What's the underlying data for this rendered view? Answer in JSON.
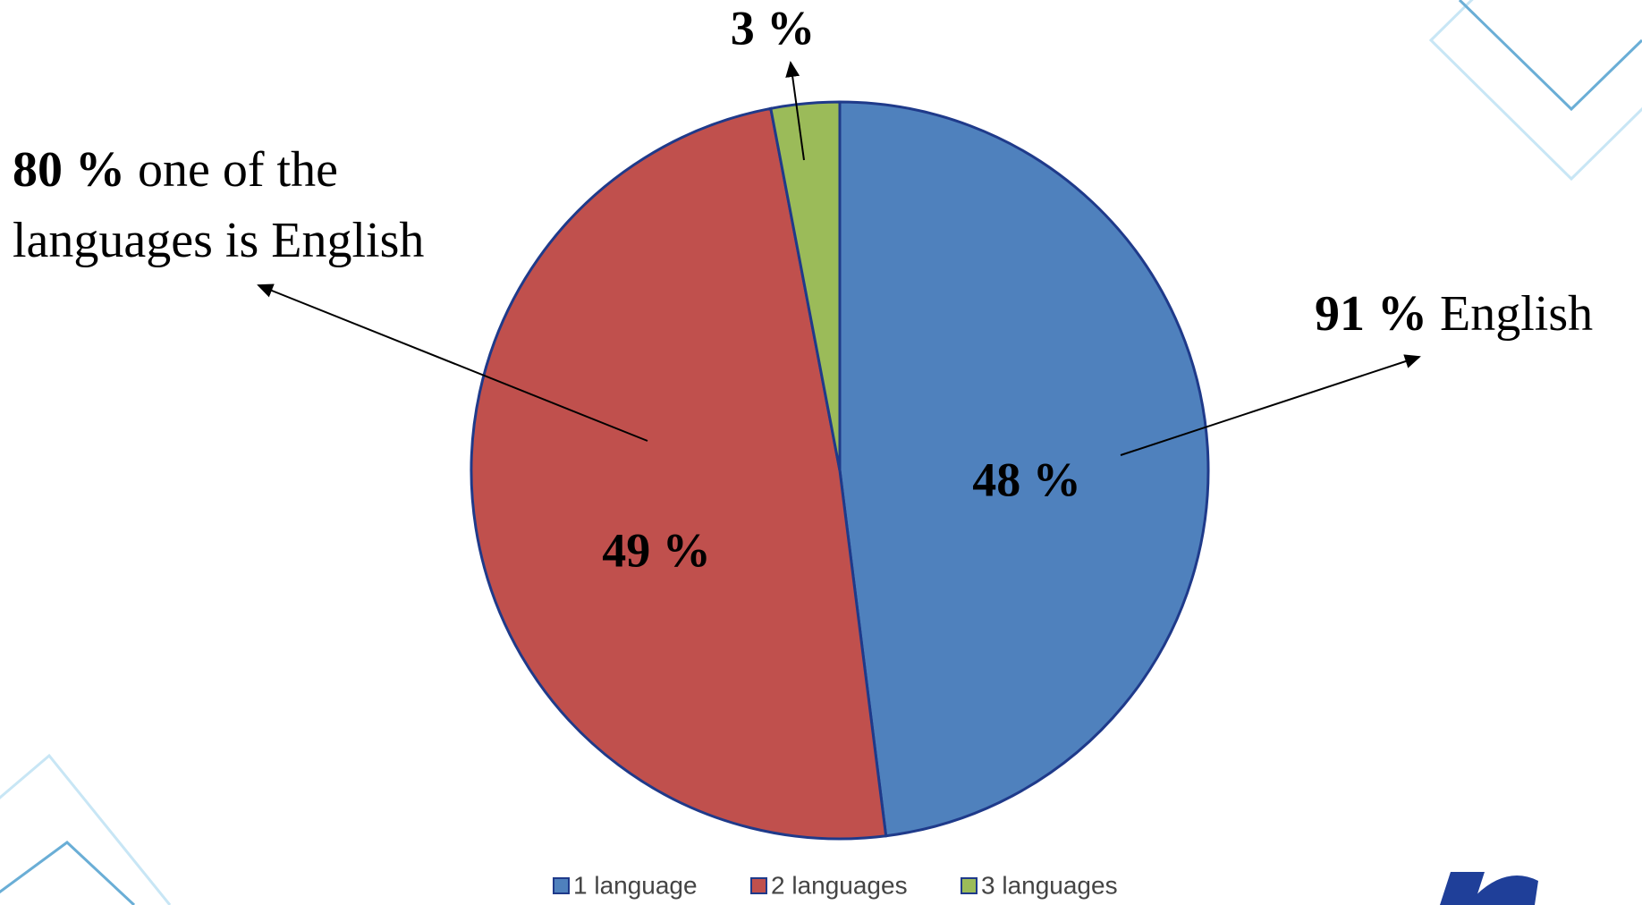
{
  "chart_data": {
    "type": "pie",
    "categories": [
      "1 language",
      "2 languages",
      "3 languages"
    ],
    "values": [
      48,
      49,
      3
    ],
    "value_labels": [
      "48 %",
      "49 %",
      "3 %"
    ],
    "colors": [
      "#4f81bd",
      "#c0504d",
      "#9bbb59"
    ],
    "legend": "bottom",
    "annotations": [
      {
        "bold": "80 %",
        "text": [
          "one of the",
          "languages is English"
        ]
      },
      {
        "bold": "91 %",
        "text": [
          "English"
        ]
      }
    ]
  }
}
